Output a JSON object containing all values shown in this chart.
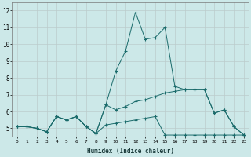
{
  "xlabel": "Humidex (Indice chaleur)",
  "background_color": "#cce8e8",
  "grid_color": "#bbcccc",
  "line_color": "#1a6b6b",
  "xlim": [
    -0.5,
    23.5
  ],
  "ylim": [
    4.5,
    12.5
  ],
  "yticks": [
    5,
    6,
    7,
    8,
    9,
    10,
    11,
    12
  ],
  "xtick_labels": [
    "0",
    "1",
    "2",
    "3",
    "4",
    "5",
    "6",
    "7",
    "8",
    "9",
    "10",
    "11",
    "12",
    "13",
    "14",
    "15",
    "16",
    "17",
    "18",
    "19",
    "20",
    "21",
    "22",
    "23"
  ],
  "series": [
    [
      5.1,
      5.1,
      5.0,
      4.8,
      5.7,
      5.5,
      5.7,
      5.1,
      4.7,
      6.4,
      8.4,
      9.6,
      11.9,
      10.3,
      10.4,
      11.0,
      7.5,
      7.3,
      7.3,
      7.3,
      5.9,
      6.1,
      5.1,
      4.6
    ],
    [
      5.1,
      5.1,
      5.0,
      4.8,
      5.7,
      5.5,
      5.7,
      5.1,
      4.7,
      6.4,
      6.1,
      6.3,
      6.6,
      6.7,
      6.9,
      7.1,
      7.2,
      7.3,
      7.3,
      7.3,
      5.9,
      6.1,
      5.1,
      4.6
    ],
    [
      5.1,
      5.1,
      5.0,
      4.8,
      5.7,
      5.5,
      5.7,
      5.1,
      4.7,
      5.2,
      5.3,
      5.4,
      5.5,
      5.6,
      5.7,
      4.6,
      4.6,
      4.6,
      4.6,
      4.6,
      4.6,
      4.6,
      4.6,
      4.6
    ]
  ]
}
